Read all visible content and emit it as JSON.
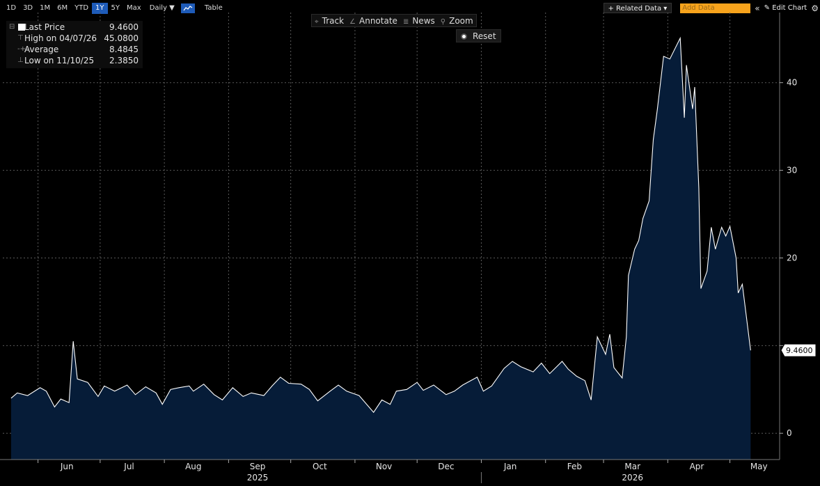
{
  "toolbar": {
    "ranges": [
      "1D",
      "3D",
      "1M",
      "6M",
      "YTD",
      "1Y",
      "5Y",
      "Max"
    ],
    "active_range": "1Y",
    "frequency": "Daily ▼",
    "table_label": "Table",
    "related_data": "+ Related Data ▾",
    "add_data_placeholder": "Add Data",
    "collapse": "«",
    "edit_chart": "✎ Edit Chart",
    "settings_icon": "gear-icon"
  },
  "chart_tools": {
    "track": "Track",
    "annotate": "Annotate",
    "news": "News",
    "zoom": "Zoom",
    "reset": "Reset"
  },
  "legend": {
    "last_price_label": "Last Price",
    "last_price_value": "9.4600",
    "high_label": "High on 04/07/26",
    "high_value": "45.0800",
    "average_label": "Average",
    "average_value": "8.4845",
    "low_label": "Low on 11/10/25",
    "low_value": "2.3850"
  },
  "colors": {
    "line": "#ffffff",
    "fill": "#061c38",
    "grid": "#5a5a5a",
    "accent": "#1e5bb8",
    "add_data": "#f7a31c"
  },
  "chart_data": {
    "type": "area",
    "series": [
      {
        "name": "Last Price",
        "points": [
          [
            "2025-05-19",
            4.0
          ],
          [
            "2025-05-22",
            4.6
          ],
          [
            "2025-05-27",
            4.3
          ],
          [
            "2025-06-02",
            5.2
          ],
          [
            "2025-06-05",
            4.8
          ],
          [
            "2025-06-09",
            3.0
          ],
          [
            "2025-06-12",
            3.9
          ],
          [
            "2025-06-16",
            3.5
          ],
          [
            "2025-06-17",
            7.0
          ],
          [
            "2025-06-18",
            10.5
          ],
          [
            "2025-06-20",
            6.2
          ],
          [
            "2025-06-25",
            5.8
          ],
          [
            "2025-06-30",
            4.2
          ],
          [
            "2025-07-03",
            5.4
          ],
          [
            "2025-07-08",
            4.8
          ],
          [
            "2025-07-14",
            5.5
          ],
          [
            "2025-07-18",
            4.4
          ],
          [
            "2025-07-23",
            5.3
          ],
          [
            "2025-07-28",
            4.6
          ],
          [
            "2025-07-31",
            3.3
          ],
          [
            "2025-08-04",
            5.0
          ],
          [
            "2025-08-08",
            5.2
          ],
          [
            "2025-08-13",
            5.4
          ],
          [
            "2025-08-15",
            4.8
          ],
          [
            "2025-08-20",
            5.6
          ],
          [
            "2025-08-25",
            4.4
          ],
          [
            "2025-08-29",
            3.8
          ],
          [
            "2025-09-03",
            5.2
          ],
          [
            "2025-09-08",
            4.2
          ],
          [
            "2025-09-12",
            4.6
          ],
          [
            "2025-09-18",
            4.3
          ],
          [
            "2025-09-22",
            5.4
          ],
          [
            "2025-09-26",
            6.4
          ],
          [
            "2025-09-30",
            5.7
          ],
          [
            "2025-10-06",
            5.6
          ],
          [
            "2025-10-10",
            5.0
          ],
          [
            "2025-10-14",
            3.7
          ],
          [
            "2025-10-20",
            4.8
          ],
          [
            "2025-10-24",
            5.5
          ],
          [
            "2025-10-28",
            4.8
          ],
          [
            "2025-11-03",
            4.3
          ],
          [
            "2025-11-10",
            2.385
          ],
          [
            "2025-11-14",
            3.8
          ],
          [
            "2025-11-18",
            3.3
          ],
          [
            "2025-11-21",
            4.8
          ],
          [
            "2025-11-26",
            5.0
          ],
          [
            "2025-12-01",
            5.8
          ],
          [
            "2025-12-04",
            4.9
          ],
          [
            "2025-12-09",
            5.5
          ],
          [
            "2025-12-15",
            4.4
          ],
          [
            "2025-12-19",
            4.8
          ],
          [
            "2025-12-23",
            5.5
          ],
          [
            "2025-12-30",
            6.4
          ],
          [
            "2026-01-02",
            4.8
          ],
          [
            "2026-01-06",
            5.4
          ],
          [
            "2026-01-12",
            7.4
          ],
          [
            "2026-01-16",
            8.2
          ],
          [
            "2026-01-20",
            7.6
          ],
          [
            "2026-01-26",
            7.0
          ],
          [
            "2026-01-30",
            8.0
          ],
          [
            "2026-02-03",
            6.8
          ],
          [
            "2026-02-09",
            8.2
          ],
          [
            "2026-02-12",
            7.3
          ],
          [
            "2026-02-16",
            6.5
          ],
          [
            "2026-02-20",
            6.0
          ],
          [
            "2026-02-23",
            3.8
          ],
          [
            "2026-02-26",
            11.0
          ],
          [
            "2026-03-02",
            9.0
          ],
          [
            "2026-03-04",
            11.3
          ],
          [
            "2026-03-06",
            7.5
          ],
          [
            "2026-03-10",
            6.3
          ],
          [
            "2026-03-12",
            11.0
          ],
          [
            "2026-03-13",
            18.0
          ],
          [
            "2026-03-16",
            21.0
          ],
          [
            "2026-03-18",
            22.0
          ],
          [
            "2026-03-20",
            24.5
          ],
          [
            "2026-03-23",
            26.5
          ],
          [
            "2026-03-25",
            33.5
          ],
          [
            "2026-03-27",
            37.0
          ],
          [
            "2026-03-30",
            43.0
          ],
          [
            "2026-04-02",
            42.7
          ],
          [
            "2026-04-07",
            45.08
          ],
          [
            "2026-04-09",
            36.0
          ],
          [
            "2026-04-10",
            42.0
          ],
          [
            "2026-04-13",
            37.0
          ],
          [
            "2026-04-14",
            39.5
          ],
          [
            "2026-04-16",
            28.0
          ],
          [
            "2026-04-17",
            16.5
          ],
          [
            "2026-04-20",
            18.5
          ],
          [
            "2026-04-22",
            23.5
          ],
          [
            "2026-04-24",
            21.0
          ],
          [
            "2026-04-27",
            23.5
          ],
          [
            "2026-04-29",
            22.5
          ],
          [
            "2026-05-01",
            23.6
          ],
          [
            "2026-05-04",
            20.0
          ],
          [
            "2026-05-05",
            16.0
          ],
          [
            "2026-05-07",
            17.0
          ],
          [
            "2026-05-11",
            9.46
          ]
        ]
      }
    ],
    "x_range": [
      "2025-05-15",
      "2026-05-25"
    ],
    "ylim": [
      -3,
      48
    ],
    "y_ticks": [
      0,
      10,
      20,
      30,
      40
    ],
    "y_tick_labels": [
      "0",
      "",
      "20",
      "30",
      "40"
    ],
    "x_month_labels": [
      {
        "date": "2025-06-15",
        "label": "Jun"
      },
      {
        "date": "2025-07-15",
        "label": "Jul"
      },
      {
        "date": "2025-08-15",
        "label": "Aug"
      },
      {
        "date": "2025-09-15",
        "label": "Sep"
      },
      {
        "date": "2025-10-15",
        "label": "Oct"
      },
      {
        "date": "2025-11-15",
        "label": "Nov"
      },
      {
        "date": "2025-12-15",
        "label": "Dec"
      },
      {
        "date": "2026-01-15",
        "label": "Jan"
      },
      {
        "date": "2026-02-15",
        "label": "Feb"
      },
      {
        "date": "2026-03-15",
        "label": "Mar"
      },
      {
        "date": "2026-04-15",
        "label": "Apr"
      },
      {
        "date": "2026-05-15",
        "label": "May"
      }
    ],
    "x_year_labels": [
      {
        "date": "2025-09-15",
        "label": "2025"
      },
      {
        "date": "2026-03-15",
        "label": "2026"
      }
    ],
    "year_divider": "2026-01-01",
    "month_gridlines": [
      "2025-06-01",
      "2025-07-01",
      "2025-08-01",
      "2025-09-01",
      "2025-10-01",
      "2025-11-01",
      "2025-12-01",
      "2026-01-01",
      "2026-02-01",
      "2026-03-01",
      "2026-04-01",
      "2026-05-01"
    ],
    "last_value_label": "9.4600",
    "grid": true,
    "legend_position": "top-left"
  }
}
